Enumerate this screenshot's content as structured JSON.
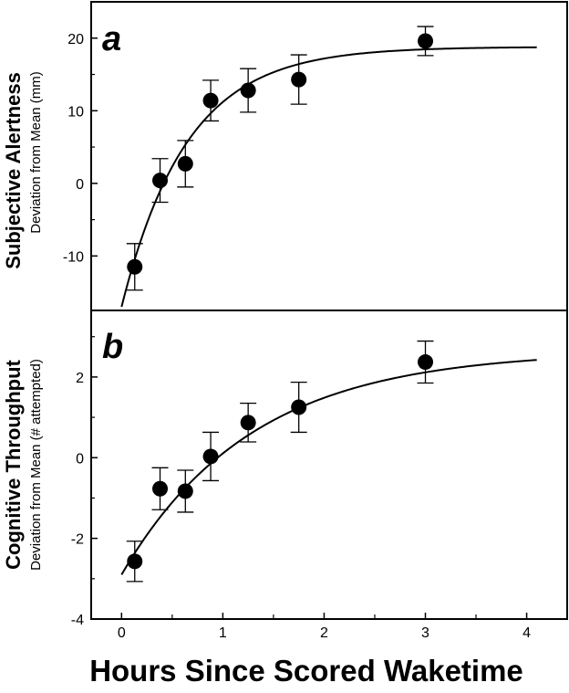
{
  "chart_data": [
    {
      "type": "scatter",
      "panel_label": "a",
      "ylabel": "Subjective Alertness",
      "ylabel_sub": "Deviation from Mean (mm)",
      "xlim": [
        -0.3,
        4.4
      ],
      "ylim": [
        -17.5,
        25
      ],
      "yticks": [
        -10,
        0,
        10,
        20
      ],
      "ytick_labels": [
        "-10",
        "0",
        "10",
        "20"
      ],
      "grid": false,
      "series": [
        {
          "points": [
            {
              "x": 0.13,
              "y": -11.5,
              "err": 3.2
            },
            {
              "x": 0.38,
              "y": 0.4,
              "err": 3.0
            },
            {
              "x": 0.63,
              "y": 2.7,
              "err": 3.2
            },
            {
              "x": 0.88,
              "y": 11.4,
              "err": 2.8
            },
            {
              "x": 1.25,
              "y": 12.8,
              "err": 3.0
            },
            {
              "x": 1.75,
              "y": 14.3,
              "err": 3.4
            },
            {
              "x": 3.0,
              "y": 19.6,
              "err": 2.0
            }
          ],
          "fit": {
            "type": "exponential_saturation",
            "asymptote": 18.8,
            "initial": -17.0,
            "rate": 1.55,
            "x_range": [
              0.0,
              4.1
            ]
          }
        }
      ]
    },
    {
      "type": "scatter",
      "panel_label": "b",
      "ylabel": "Cognitive Throughput",
      "ylabel_sub": "Deviation from Mean (# attempted)",
      "xlabel": "Hours Since Scored Waketime",
      "xlim": [
        -0.3,
        4.4
      ],
      "ylim": [
        -4,
        3.65
      ],
      "xticks": [
        0,
        1,
        2,
        3,
        4
      ],
      "xtick_labels": [
        "0",
        "1",
        "2",
        "3",
        "4"
      ],
      "yticks": [
        -4,
        -2,
        0,
        2
      ],
      "ytick_labels": [
        "-4",
        "-2",
        "0",
        "2"
      ],
      "grid": false,
      "series": [
        {
          "points": [
            {
              "x": 0.13,
              "y": -2.57,
              "err": 0.5
            },
            {
              "x": 0.38,
              "y": -0.77,
              "err": 0.52
            },
            {
              "x": 0.63,
              "y": -0.83,
              "err": 0.52
            },
            {
              "x": 0.88,
              "y": 0.03,
              "err": 0.6
            },
            {
              "x": 1.25,
              "y": 0.87,
              "err": 0.48
            },
            {
              "x": 1.75,
              "y": 1.25,
              "err": 0.62
            },
            {
              "x": 3.0,
              "y": 2.37,
              "err": 0.52
            }
          ],
          "fit": {
            "type": "exponential_saturation",
            "asymptote": 2.65,
            "initial": -2.9,
            "rate": 0.78,
            "x_range": [
              0.0,
              4.1
            ]
          }
        }
      ]
    }
  ]
}
